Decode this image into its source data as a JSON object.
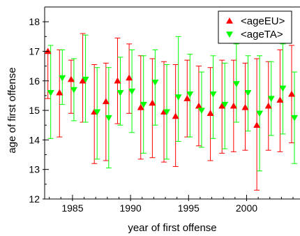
{
  "chart_data": {
    "type": "scatter",
    "title": "",
    "xlabel": "year of first offense",
    "ylabel": "age of first offense",
    "xlim": [
      1982.6,
      2004.6
    ],
    "ylim": [
      12,
      18.5
    ],
    "x_ticks": [
      1985,
      1990,
      1995,
      2000
    ],
    "y_ticks": [
      12,
      13,
      14,
      15,
      16,
      17,
      18
    ],
    "grid": false,
    "legend_position": "top-right",
    "series": [
      {
        "name": "<ageEU>",
        "color": "#ff0000",
        "marker": "triangle-up",
        "offset": -0.12,
        "x": [
          1983,
          1984,
          1985,
          1986,
          1987,
          1988,
          1989,
          1990,
          1991,
          1992,
          1993,
          1994,
          1995,
          1996,
          1997,
          1998,
          1999,
          2000,
          2001,
          2002,
          2003,
          2004
        ],
        "y": [
          17.0,
          15.6,
          16.05,
          16.0,
          14.95,
          15.3,
          16.0,
          16.1,
          15.1,
          15.25,
          14.95,
          14.8,
          15.4,
          15.15,
          14.9,
          15.15,
          15.15,
          15.1,
          14.5,
          15.15,
          15.35,
          15.55
        ],
        "err_low": [
          15.4,
          14.1,
          14.9,
          14.6,
          13.2,
          13.3,
          14.55,
          14.9,
          13.35,
          13.4,
          13.25,
          13.1,
          14.1,
          13.8,
          13.3,
          13.55,
          13.6,
          13.65,
          12.3,
          13.65,
          13.6,
          13.9
        ],
        "err_high": [
          17.0,
          17.05,
          16.7,
          17.6,
          16.55,
          16.6,
          17.45,
          17.25,
          16.85,
          16.75,
          16.65,
          16.55,
          16.7,
          16.5,
          16.45,
          16.7,
          16.7,
          16.6,
          16.75,
          16.65,
          17.05,
          17.2
        ]
      },
      {
        "name": "<ageTA>",
        "color": "#00ff00",
        "marker": "triangle-down",
        "offset": 0.12,
        "x": [
          1983,
          1984,
          1985,
          1986,
          1987,
          1988,
          1989,
          1990,
          1991,
          1992,
          1993,
          1994,
          1995,
          1996,
          1997,
          1998,
          1999,
          2000,
          2001,
          2002,
          2003,
          2004
        ],
        "y": [
          15.6,
          16.1,
          15.7,
          16.05,
          14.95,
          14.75,
          15.6,
          15.65,
          15.2,
          15.95,
          14.95,
          15.45,
          15.55,
          15.0,
          15.55,
          15.2,
          15.9,
          15.6,
          14.9,
          15.4,
          15.75,
          14.75
        ],
        "err_low": [
          14.05,
          15.2,
          14.65,
          14.6,
          13.35,
          13.05,
          14.5,
          14.25,
          13.55,
          14.5,
          13.35,
          13.95,
          14.1,
          13.75,
          14.05,
          13.7,
          14.6,
          14.3,
          12.95,
          14.15,
          14.2,
          13.2
        ],
        "err_high": [
          17.2,
          17.05,
          16.75,
          17.55,
          16.45,
          16.45,
          16.8,
          17.05,
          16.85,
          17.05,
          16.55,
          17.5,
          16.9,
          16.3,
          16.85,
          16.6,
          17.25,
          16.85,
          16.85,
          16.65,
          17.25,
          16.3
        ]
      }
    ]
  }
}
